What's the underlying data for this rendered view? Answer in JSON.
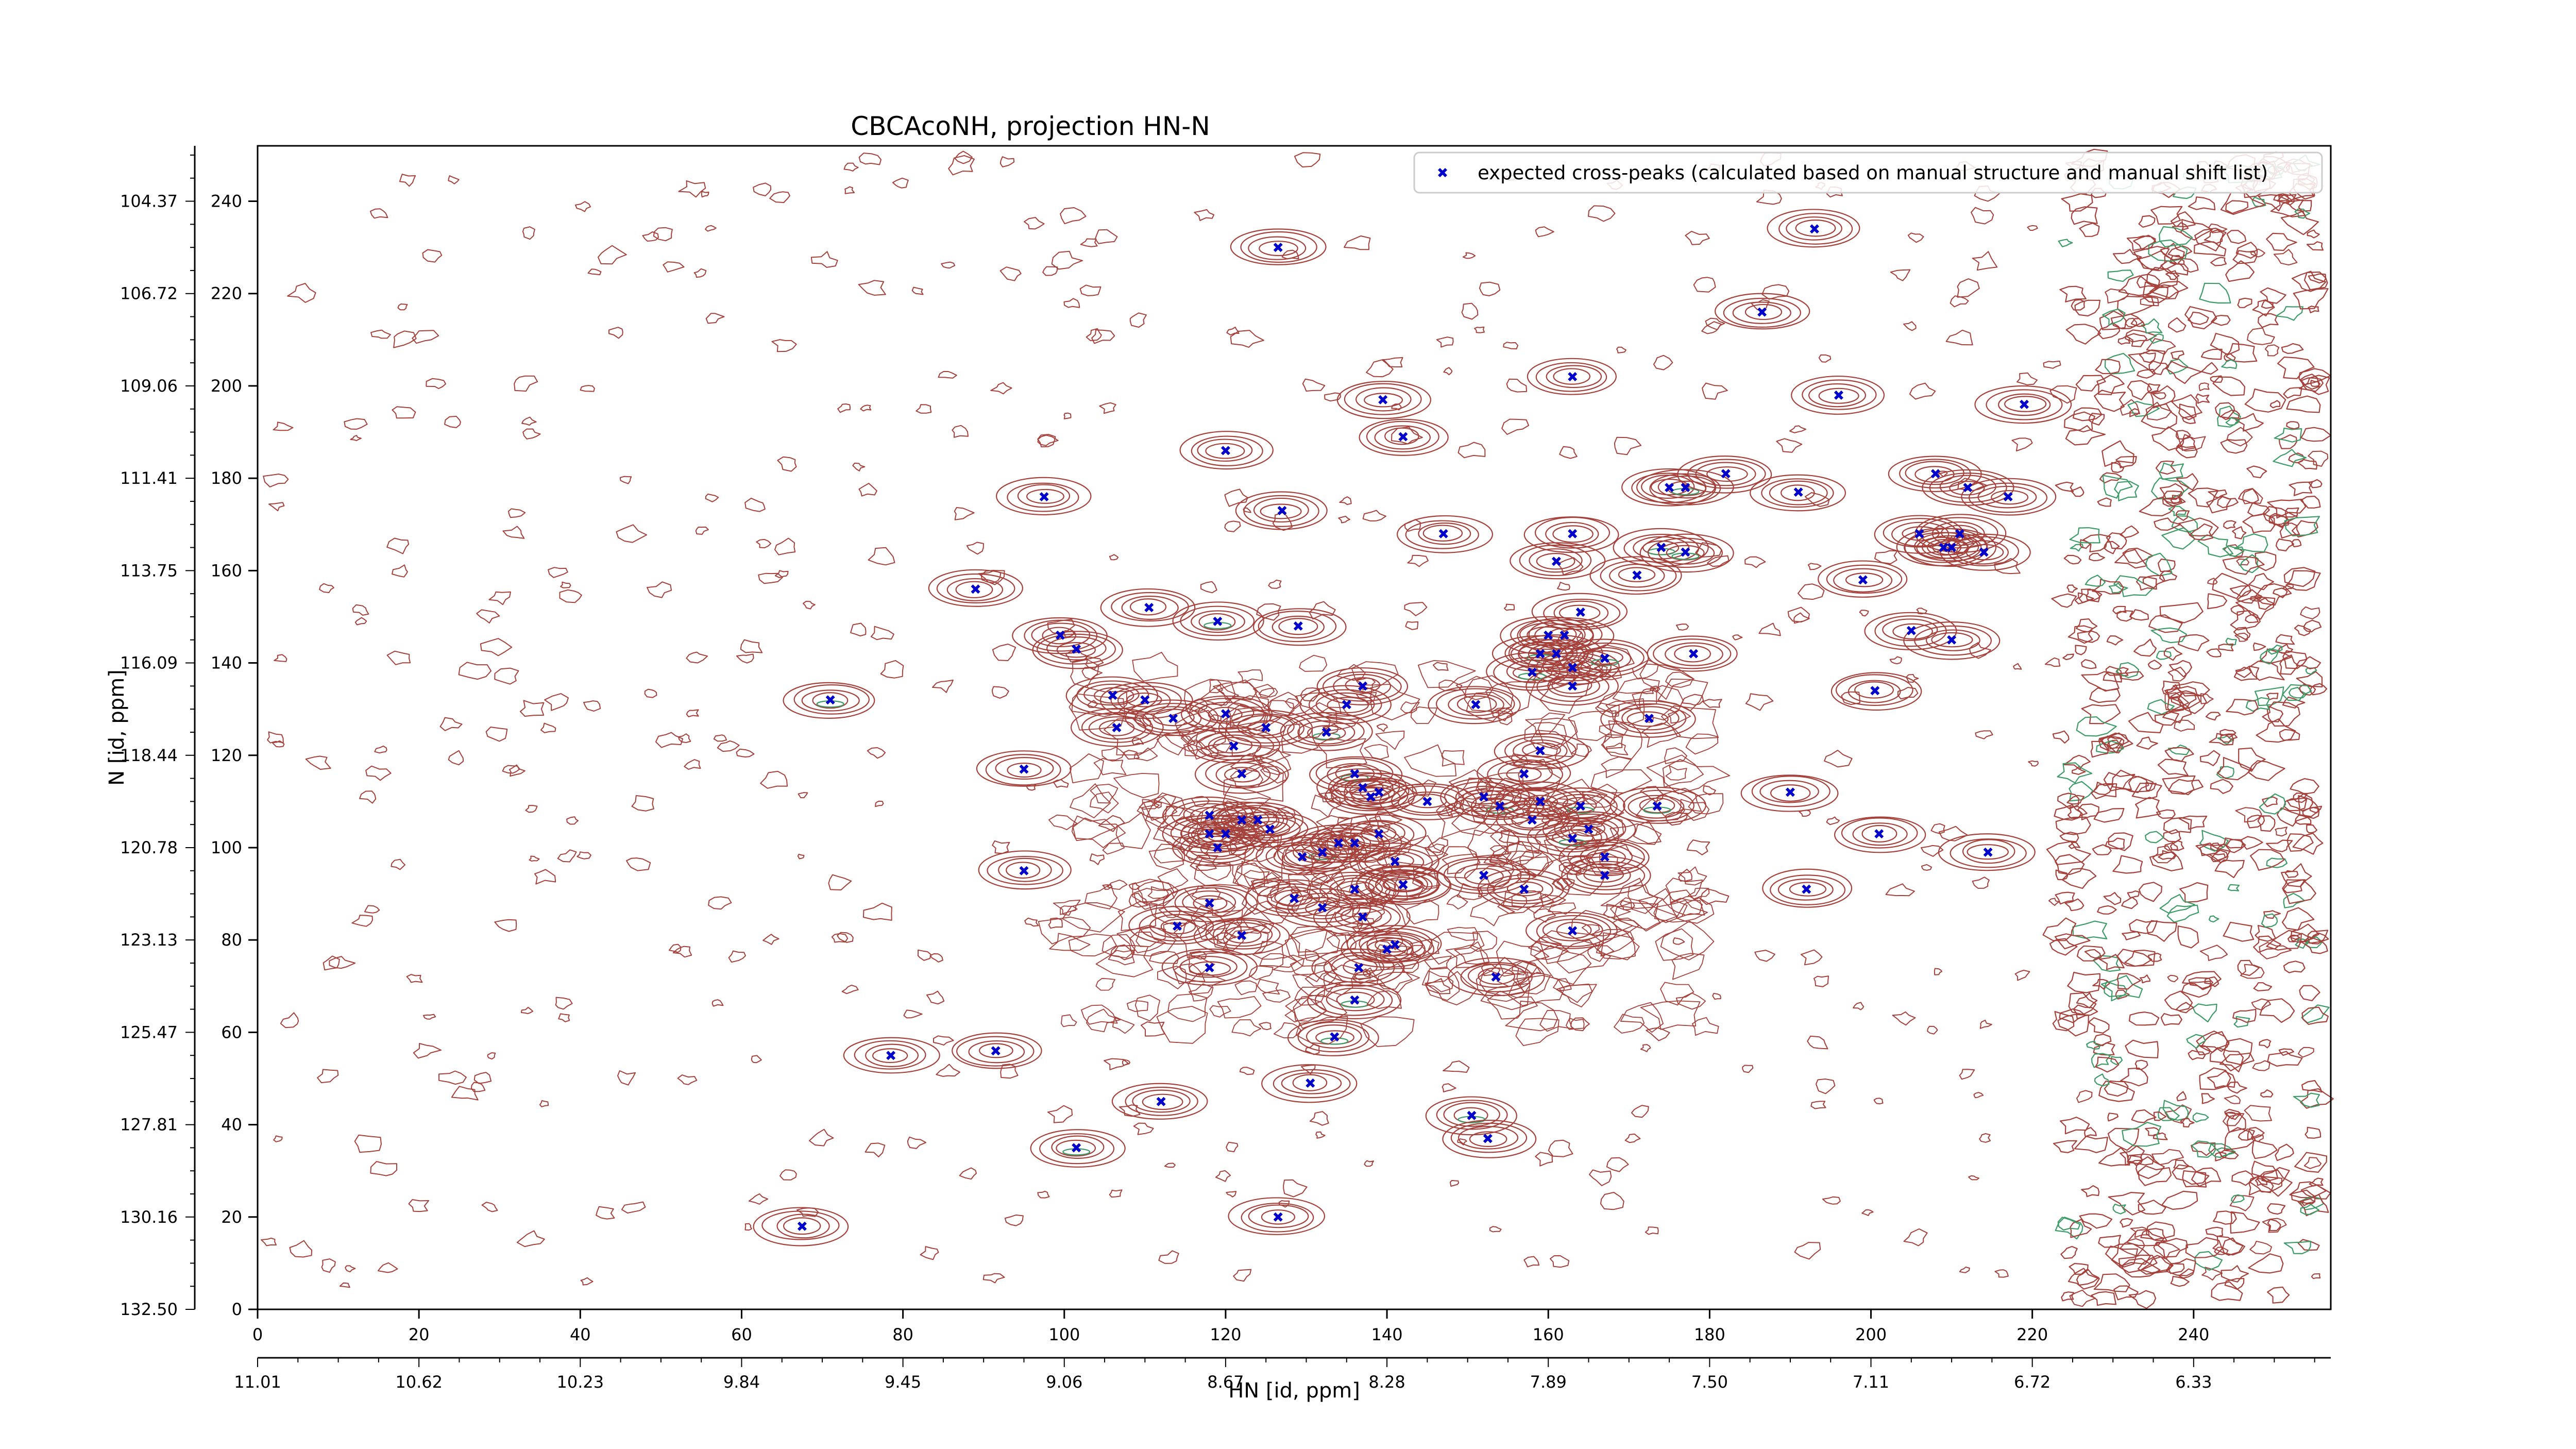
{
  "chart_data": {
    "type": "scatter",
    "title": "CBCAcoNH, projection HN-N",
    "xlabel": "HN [id, ppm]",
    "ylabel": "N [id, ppm]",
    "x_index_range": [
      0,
      257
    ],
    "y_index_range": [
      0,
      252
    ],
    "x_index_ticks": [
      "0",
      "20",
      "40",
      "60",
      "80",
      "100",
      "120",
      "140",
      "160",
      "180",
      "200",
      "220",
      "240"
    ],
    "x_ppm_ticks": [
      "11.01",
      "10.62",
      "10.23",
      "9.84",
      "9.45",
      "9.06",
      "8.67",
      "8.28",
      "7.89",
      "7.50",
      "7.11",
      "6.72",
      "6.33"
    ],
    "y_index_ticks": [
      "0",
      "20",
      "40",
      "60",
      "80",
      "100",
      "120",
      "140",
      "160",
      "180",
      "200",
      "220",
      "240"
    ],
    "y_ppm_ticks": [
      "132.50",
      "130.16",
      "127.81",
      "125.47",
      "123.13",
      "120.78",
      "118.44",
      "116.09",
      "113.75",
      "111.41",
      "109.06",
      "106.72",
      "104.37"
    ],
    "legend": {
      "location": "top-right",
      "label": "expected cross-peaks (calculated based on manual structure and manual shift list)"
    },
    "colors": {
      "contour_positive": "#a5403b",
      "contour_negative": "#3c9b66",
      "marker": "#0000cc"
    },
    "series": [
      {
        "name": "expected cross-peaks (calculated based on manual structure and manual shift list)",
        "points": [
          [
            126.5,
            230
          ],
          [
            193,
            234
          ],
          [
            186.5,
            216
          ],
          [
            163,
            202
          ],
          [
            196,
            198
          ],
          [
            139.5,
            197
          ],
          [
            142,
            189
          ],
          [
            219,
            196
          ],
          [
            120,
            186
          ],
          [
            97.5,
            176
          ],
          [
            127,
            173
          ],
          [
            175,
            178
          ],
          [
            177,
            178
          ],
          [
            182,
            181
          ],
          [
            191,
            177
          ],
          [
            208,
            181
          ],
          [
            212,
            178
          ],
          [
            217,
            176
          ],
          [
            147,
            168
          ],
          [
            163,
            168
          ],
          [
            206,
            168
          ],
          [
            210,
            165
          ],
          [
            209,
            165
          ],
          [
            211,
            168
          ],
          [
            174,
            165
          ],
          [
            177,
            164
          ],
          [
            161,
            162
          ],
          [
            171,
            159
          ],
          [
            199,
            158
          ],
          [
            214,
            164
          ],
          [
            89,
            156
          ],
          [
            110.5,
            152
          ],
          [
            164,
            151
          ],
          [
            119,
            149
          ],
          [
            129,
            148
          ],
          [
            99.5,
            146
          ],
          [
            101.5,
            143
          ],
          [
            160,
            146
          ],
          [
            162,
            146
          ],
          [
            205,
            147
          ],
          [
            210,
            145
          ],
          [
            159,
            142
          ],
          [
            161,
            142
          ],
          [
            163,
            139
          ],
          [
            158,
            138
          ],
          [
            178,
            142
          ],
          [
            167,
            141
          ],
          [
            163,
            135
          ],
          [
            137,
            135
          ],
          [
            200.5,
            134
          ],
          [
            71,
            132
          ],
          [
            106,
            133
          ],
          [
            110,
            132
          ],
          [
            135,
            131
          ],
          [
            151,
            131
          ],
          [
            113.5,
            128
          ],
          [
            106.5,
            126
          ],
          [
            120,
            129
          ],
          [
            125,
            126
          ],
          [
            132.5,
            125
          ],
          [
            172.5,
            128
          ],
          [
            121,
            122
          ],
          [
            95,
            117
          ],
          [
            122,
            116
          ],
          [
            157,
            116
          ],
          [
            136,
            116
          ],
          [
            137,
            113
          ],
          [
            138,
            111
          ],
          [
            139,
            112
          ],
          [
            159,
            121
          ],
          [
            145,
            110
          ],
          [
            152,
            111
          ],
          [
            154,
            109
          ],
          [
            159,
            110
          ],
          [
            164,
            109
          ],
          [
            173.5,
            109
          ],
          [
            190,
            112
          ],
          [
            118,
            107
          ],
          [
            122,
            106
          ],
          [
            124,
            106
          ],
          [
            125.5,
            104
          ],
          [
            118,
            103
          ],
          [
            120,
            103
          ],
          [
            158,
            106
          ],
          [
            165,
            104
          ],
          [
            119,
            100
          ],
          [
            129.5,
            98
          ],
          [
            132,
            99
          ],
          [
            134,
            101
          ],
          [
            136,
            101
          ],
          [
            139,
            103
          ],
          [
            141,
            97
          ],
          [
            163,
            102
          ],
          [
            167,
            98
          ],
          [
            201,
            103
          ],
          [
            214.5,
            99
          ],
          [
            95,
            95
          ],
          [
            136,
            91
          ],
          [
            142,
            92
          ],
          [
            152,
            94
          ],
          [
            157,
            91
          ],
          [
            167,
            94
          ],
          [
            192,
            91
          ],
          [
            118,
            88
          ],
          [
            128.5,
            89
          ],
          [
            132,
            87
          ],
          [
            137,
            85
          ],
          [
            142,
            92
          ],
          [
            114,
            83
          ],
          [
            122,
            81
          ],
          [
            140,
            78
          ],
          [
            141,
            79
          ],
          [
            163,
            82
          ],
          [
            118,
            74
          ],
          [
            136.5,
            74
          ],
          [
            153.5,
            72
          ],
          [
            136,
            67
          ],
          [
            133.5,
            59
          ],
          [
            78.5,
            55
          ],
          [
            91.5,
            56
          ],
          [
            130.5,
            49
          ],
          [
            112,
            45
          ],
          [
            150.5,
            42
          ],
          [
            152.5,
            37
          ],
          [
            101.5,
            35
          ],
          [
            126.5,
            20
          ],
          [
            67.5,
            18
          ]
        ]
      }
    ]
  }
}
